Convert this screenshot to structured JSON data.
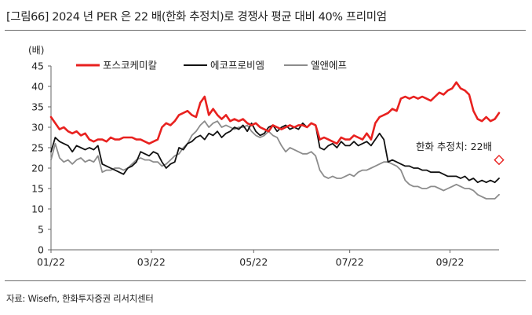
{
  "figure": {
    "title": "[그림66]  2024 년 PER 은 22 배(한화 추정치)로 경쟁사 평균 대비 40% 프리미엄",
    "source": "자료: Wisefn, 한화투자증권 리서치센터"
  },
  "chart_data": {
    "type": "line",
    "ylabel": "(배)",
    "ylim": [
      0,
      45
    ],
    "yticks": [
      0,
      5,
      10,
      15,
      20,
      25,
      30,
      35,
      40,
      45
    ],
    "xlim": [
      0,
      210
    ],
    "xticks": [
      {
        "label": "01/22",
        "x": 0
      },
      {
        "label": "03/22",
        "x": 47
      },
      {
        "label": "05/22",
        "x": 95
      },
      {
        "label": "07/22",
        "x": 140
      },
      {
        "label": "09/22",
        "x": 187
      }
    ],
    "grid": false,
    "legend_position": "top",
    "series": [
      {
        "name": "포스코케미칼",
        "color": "#e8211f",
        "x": [
          0,
          2,
          4,
          6,
          8,
          10,
          12,
          14,
          16,
          18,
          20,
          22,
          24,
          26,
          28,
          30,
          32,
          34,
          36,
          38,
          40,
          42,
          44,
          46,
          48,
          50,
          52,
          54,
          56,
          58,
          60,
          62,
          64,
          66,
          68,
          70,
          72,
          74,
          76,
          78,
          80,
          82,
          84,
          86,
          88,
          90,
          92,
          94,
          96,
          98,
          100,
          102,
          104,
          106,
          108,
          110,
          112,
          114,
          116,
          118,
          120,
          122,
          124,
          126,
          128,
          130,
          132,
          134,
          136,
          138,
          140,
          142,
          144,
          146,
          148,
          150,
          152,
          154,
          156,
          158,
          160,
          162,
          164,
          166,
          168,
          170,
          172,
          174,
          176,
          178,
          180,
          182,
          184,
          186,
          188,
          190,
          192,
          194,
          196,
          198,
          200,
          202,
          204,
          206,
          208,
          210
        ],
        "values": [
          32.5,
          31,
          29.5,
          30,
          29,
          28.5,
          29,
          28,
          28.5,
          27,
          26.5,
          27,
          27,
          26.5,
          27.5,
          27,
          27,
          27.5,
          27.5,
          27.5,
          27,
          27,
          26.5,
          26,
          26.5,
          27,
          30,
          31,
          30.5,
          31.5,
          33,
          33.5,
          34,
          33,
          32.5,
          36,
          37.5,
          33,
          34.5,
          33,
          32,
          33,
          31.5,
          32,
          31.5,
          32,
          31,
          30.5,
          31,
          30,
          29.5,
          29,
          30.5,
          30,
          29.5,
          30,
          30.5,
          30,
          30.5,
          30.5,
          30,
          31,
          30.5,
          27,
          27.5,
          27,
          26.5,
          26,
          27.5,
          27,
          27,
          28,
          27.5,
          27,
          28.5,
          27,
          31,
          32.5,
          33,
          33.5,
          34.5,
          34,
          37,
          37.5,
          37,
          37.5,
          37,
          37.5,
          37,
          36.5,
          37.5,
          38.5,
          38,
          39,
          39.5,
          41,
          39.5,
          39,
          38,
          34,
          32,
          31.5,
          32.5,
          31.5,
          32,
          33.5
        ]
      },
      {
        "name": "에코프로비엠",
        "color": "#111111",
        "x": [
          0,
          2,
          4,
          6,
          8,
          10,
          12,
          14,
          16,
          18,
          20,
          22,
          24,
          26,
          28,
          30,
          32,
          34,
          36,
          38,
          40,
          42,
          44,
          46,
          48,
          50,
          52,
          54,
          56,
          58,
          60,
          62,
          64,
          66,
          68,
          70,
          72,
          74,
          76,
          78,
          80,
          82,
          84,
          86,
          88,
          90,
          92,
          94,
          96,
          98,
          100,
          102,
          104,
          106,
          108,
          110,
          112,
          114,
          116,
          118,
          120,
          122,
          124,
          126,
          128,
          130,
          132,
          134,
          136,
          138,
          140,
          142,
          144,
          146,
          148,
          150,
          152,
          154,
          156,
          158,
          160,
          162,
          164,
          166,
          168,
          170,
          172,
          174,
          176,
          178,
          180,
          182,
          184,
          186,
          188,
          190,
          192,
          194,
          196,
          198,
          200,
          202,
          204,
          206,
          208,
          210
        ],
        "values": [
          24,
          27.5,
          26.5,
          26,
          25.5,
          24,
          25.5,
          25,
          24.5,
          25,
          24.5,
          25.5,
          21,
          20.5,
          20,
          19.5,
          19,
          18.5,
          20,
          20.5,
          21.5,
          24,
          23.5,
          23,
          24,
          23.5,
          21.5,
          20,
          21,
          21.5,
          25,
          24.5,
          26,
          26.5,
          27.5,
          28,
          27,
          28.5,
          28,
          29,
          27.5,
          28.5,
          29,
          30,
          29.5,
          30.5,
          29,
          31,
          29,
          28,
          28.5,
          30,
          30.5,
          29,
          30,
          30.5,
          29.5,
          30,
          29.5,
          31,
          30,
          31,
          30.5,
          25,
          24.5,
          25.5,
          26,
          25,
          26.5,
          25.5,
          25.5,
          26.5,
          25.5,
          26,
          26.5,
          25.5,
          27,
          28.5,
          27,
          21.5,
          22,
          21.5,
          21,
          20.5,
          20.5,
          20,
          20,
          19.5,
          19.5,
          19,
          19,
          19,
          18.5,
          18,
          18,
          18,
          17.5,
          18,
          17,
          17.5,
          16.5,
          17,
          16.5,
          17,
          16.5,
          17.5
        ]
      },
      {
        "name": "엘앤에프",
        "color": "#8c8c8c",
        "x": [
          0,
          2,
          4,
          6,
          8,
          10,
          12,
          14,
          16,
          18,
          20,
          22,
          24,
          26,
          28,
          30,
          32,
          34,
          36,
          38,
          40,
          42,
          44,
          46,
          48,
          50,
          52,
          54,
          56,
          58,
          60,
          62,
          64,
          66,
          68,
          70,
          72,
          74,
          76,
          78,
          80,
          82,
          84,
          86,
          88,
          90,
          92,
          94,
          96,
          98,
          100,
          102,
          104,
          106,
          108,
          110,
          112,
          114,
          116,
          118,
          120,
          122,
          124,
          126,
          128,
          130,
          132,
          134,
          136,
          138,
          140,
          142,
          144,
          146,
          148,
          150,
          152,
          154,
          156,
          158,
          160,
          162,
          164,
          166,
          168,
          170,
          172,
          174,
          176,
          178,
          180,
          182,
          184,
          186,
          188,
          190,
          192,
          194,
          196,
          198,
          200,
          202,
          204,
          206,
          208,
          210
        ],
        "values": [
          22,
          26,
          22.5,
          21.5,
          22,
          21,
          22,
          22.5,
          21.5,
          22,
          21.5,
          23,
          19,
          19.5,
          19.5,
          20,
          20,
          19.5,
          20,
          21,
          22,
          22.5,
          22,
          22,
          21.5,
          21.5,
          20.5,
          21,
          22,
          23,
          23.5,
          25,
          26,
          28,
          29,
          30.5,
          31.5,
          30,
          31,
          31.5,
          30,
          30.5,
          30,
          29.5,
          30,
          30,
          30.5,
          29,
          28,
          27.5,
          28,
          29,
          28,
          27.5,
          25.5,
          24,
          25,
          24.5,
          24,
          23.5,
          23.5,
          24,
          23,
          19.5,
          18,
          17.5,
          18,
          17.5,
          17.5,
          18,
          18.5,
          18,
          19,
          19.5,
          19.5,
          20,
          20.5,
          21,
          21.5,
          21.5,
          21,
          20.5,
          19.5,
          17,
          16,
          15.5,
          15.5,
          15,
          15,
          15.5,
          15.5,
          15,
          14.5,
          15,
          15.5,
          16,
          15.5,
          15,
          15,
          14.5,
          13.5,
          13,
          12.5,
          12.5,
          12.5,
          13.5
        ]
      }
    ],
    "annotation": {
      "text": "한화 추정치: 22배",
      "x": 210,
      "y": 22,
      "color": "#e8211f"
    }
  }
}
